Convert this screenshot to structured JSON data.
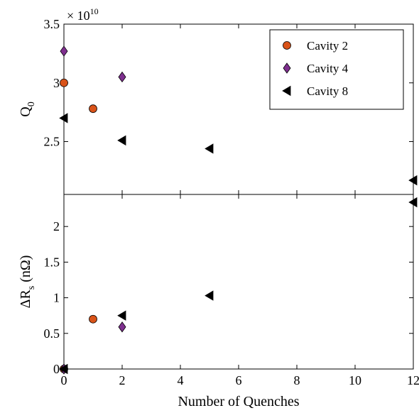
{
  "chart_data": [
    {
      "type": "scatter",
      "panel": "top",
      "ylabel": "Q",
      "ylabel_sub": "0",
      "exponent_label": "× 10",
      "exponent_power": "10",
      "xlim": [
        0,
        12
      ],
      "ylim": [
        2.05,
        3.5
      ],
      "yticks": [
        2.5,
        3,
        3.5
      ],
      "ytick_labels": [
        "2.5",
        "3",
        "3.5"
      ],
      "grid": false,
      "legend_position": "top-right",
      "series": [
        {
          "name": "Cavity 2",
          "marker": "circle",
          "color": "#d95319",
          "x": [
            0,
            1
          ],
          "y": [
            3.0,
            2.78
          ]
        },
        {
          "name": "Cavity 4",
          "marker": "diamond",
          "color": "#7e2f8e",
          "x": [
            0,
            2
          ],
          "y": [
            3.27,
            3.05
          ]
        },
        {
          "name": "Cavity 8",
          "marker": "triangle-left",
          "color": "#000000",
          "x": [
            0,
            2,
            5,
            12
          ],
          "y": [
            2.7,
            2.51,
            2.44,
            2.17
          ]
        }
      ]
    },
    {
      "type": "scatter",
      "panel": "bottom",
      "ylabel": "ΔR",
      "ylabel_sub": "s",
      "ylabel_unit": " (nΩ)",
      "xlabel": "Number of Quenches",
      "xlim": [
        0,
        12
      ],
      "ylim": [
        0,
        2.45
      ],
      "xticks": [
        0,
        2,
        4,
        6,
        8,
        10,
        12
      ],
      "xtick_labels": [
        "0",
        "2",
        "4",
        "6",
        "8",
        "10",
        "12"
      ],
      "yticks": [
        0,
        0.5,
        1,
        1.5,
        2
      ],
      "ytick_labels": [
        "0",
        "0.5",
        "1",
        "1.5",
        "2"
      ],
      "grid": false,
      "series": [
        {
          "name": "Cavity 2",
          "marker": "circle",
          "color": "#d95319",
          "x": [
            0,
            1
          ],
          "y": [
            0,
            0.7
          ]
        },
        {
          "name": "Cavity 4",
          "marker": "diamond",
          "color": "#7e2f8e",
          "x": [
            0,
            2
          ],
          "y": [
            0,
            0.59
          ]
        },
        {
          "name": "Cavity 8",
          "marker": "triangle-left",
          "color": "#000000",
          "x": [
            0,
            2,
            5,
            12
          ],
          "y": [
            0,
            0.75,
            1.03,
            2.34
          ]
        }
      ]
    }
  ]
}
